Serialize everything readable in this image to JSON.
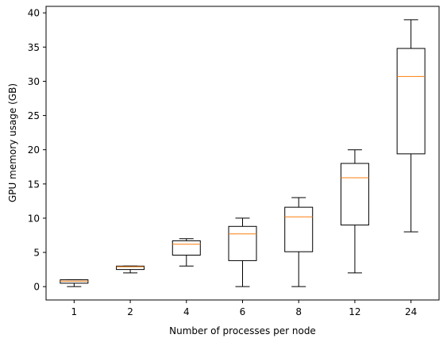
{
  "chart_data": {
    "type": "box",
    "categories": [
      "1",
      "2",
      "4",
      "6",
      "8",
      "12",
      "24"
    ],
    "boxes": [
      {
        "whisker_low": 0.0,
        "q1": 0.5,
        "median": 0.8,
        "q3": 1.0,
        "whisker_high": 1.0
      },
      {
        "whisker_low": 2.0,
        "q1": 2.5,
        "median": 2.9,
        "q3": 3.0,
        "whisker_high": 3.0
      },
      {
        "whisker_low": 3.0,
        "q1": 4.6,
        "median": 6.2,
        "q3": 6.7,
        "whisker_high": 7.0
      },
      {
        "whisker_low": 0.0,
        "q1": 3.8,
        "median": 7.7,
        "q3": 8.8,
        "whisker_high": 10.0
      },
      {
        "whisker_low": 0.0,
        "q1": 5.1,
        "median": 10.2,
        "q3": 11.6,
        "whisker_high": 13.0
      },
      {
        "whisker_low": 2.0,
        "q1": 9.0,
        "median": 15.9,
        "q3": 18.0,
        "whisker_high": 20.0
      },
      {
        "whisker_low": 8.0,
        "q1": 19.4,
        "median": 30.7,
        "q3": 34.8,
        "whisker_high": 39.0
      }
    ],
    "xlabel": "Number of processes per node",
    "ylabel": "GPU memory usage (GB)",
    "ylim": [
      -1.95,
      40.95
    ],
    "yticks": [
      0,
      5,
      10,
      15,
      20,
      25,
      30,
      35,
      40
    ],
    "grid": false,
    "colors": {
      "box": "#000000",
      "median": "#ff7f0e",
      "axes": "#000000"
    }
  }
}
